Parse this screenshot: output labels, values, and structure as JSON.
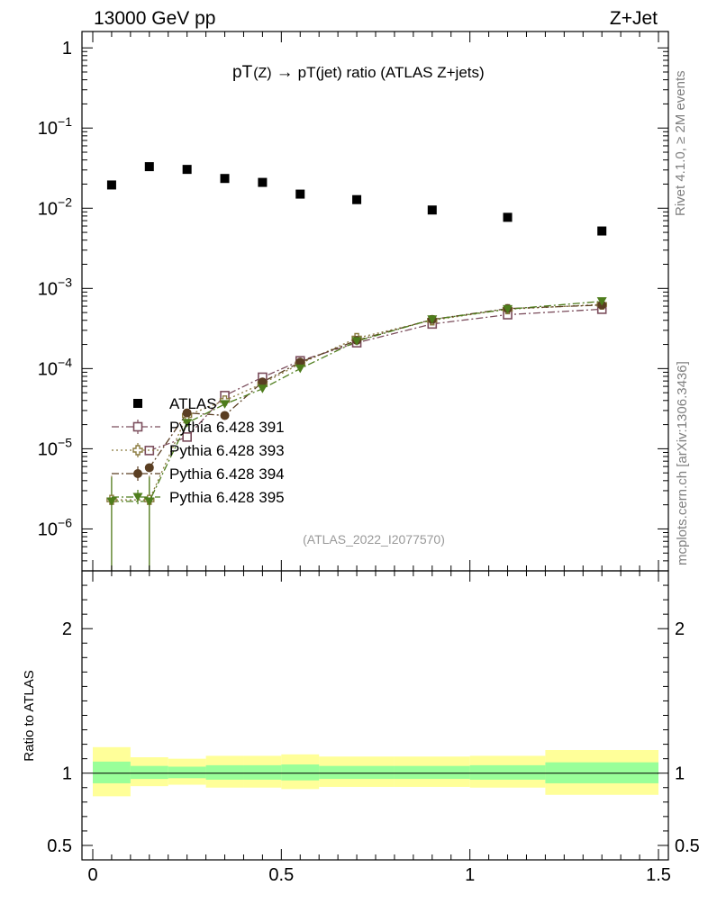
{
  "header": {
    "left": "13000 GeV pp",
    "right": "Z+Jet"
  },
  "side_labels": {
    "rivet": "Rivet 4.1.0, ≥ 2M events",
    "mcplots": "mcplots.cern.ch [arXiv:1306.3436]"
  },
  "chart_data": {
    "type": "scatter",
    "title_parts": {
      "pT1": "pT",
      "z": "(Z)",
      "arrow": "→",
      "rest": "pT(jet) ratio (ATLAS Z+jets)"
    },
    "title": "pT(Z) → pT(jet) ratio (ATLAS Z+jets)",
    "analysis_tag": "(ATLAS_2022_I2077570)",
    "xlim": [
      0,
      1.5
    ],
    "x_ticks": [
      {
        "value": 0,
        "label": "0"
      },
      {
        "value": 0.5,
        "label": "0.5"
      },
      {
        "value": 1,
        "label": "1"
      },
      {
        "value": 1.5,
        "label": "1.5"
      }
    ],
    "main": {
      "yscale": "log",
      "ylim": [
        3e-07,
        1.6
      ],
      "y_ticks": [
        {
          "value": 1,
          "base": "1",
          "exp": ""
        },
        {
          "value": 0.1,
          "base": "10",
          "exp": "−1"
        },
        {
          "value": 0.01,
          "base": "10",
          "exp": "−2"
        },
        {
          "value": 0.001,
          "base": "10",
          "exp": "−3"
        },
        {
          "value": 0.0001,
          "base": "10",
          "exp": "−4"
        },
        {
          "value": 1e-05,
          "base": "10",
          "exp": "−5"
        },
        {
          "value": 1e-06,
          "base": "10",
          "exp": "−6"
        }
      ]
    },
    "ratio": {
      "ylabel": "Ratio to ATLAS",
      "ylim": [
        0.4,
        2.4
      ],
      "y_ticks": [
        {
          "value": 0.5,
          "label": "0.5"
        },
        {
          "value": 1,
          "label": "1"
        },
        {
          "value": 2,
          "label": "2"
        }
      ],
      "bands": [
        {
          "xlo": 0.0,
          "xhi": 0.1,
          "in_lo": 0.93,
          "in_hi": 1.08,
          "out_lo": 0.84,
          "out_hi": 1.18
        },
        {
          "xlo": 0.1,
          "xhi": 0.2,
          "in_lo": 0.96,
          "in_hi": 1.05,
          "out_lo": 0.91,
          "out_hi": 1.11
        },
        {
          "xlo": 0.2,
          "xhi": 0.3,
          "in_lo": 0.965,
          "in_hi": 1.045,
          "out_lo": 0.92,
          "out_hi": 1.1
        },
        {
          "xlo": 0.3,
          "xhi": 0.4,
          "in_lo": 0.955,
          "in_hi": 1.055,
          "out_lo": 0.9,
          "out_hi": 1.12
        },
        {
          "xlo": 0.4,
          "xhi": 0.5,
          "in_lo": 0.955,
          "in_hi": 1.055,
          "out_lo": 0.9,
          "out_hi": 1.12
        },
        {
          "xlo": 0.5,
          "xhi": 0.6,
          "in_lo": 0.95,
          "in_hi": 1.06,
          "out_lo": 0.89,
          "out_hi": 1.13
        },
        {
          "xlo": 0.6,
          "xhi": 0.8,
          "in_lo": 0.96,
          "in_hi": 1.05,
          "out_lo": 0.905,
          "out_hi": 1.115
        },
        {
          "xlo": 0.8,
          "xhi": 1.0,
          "in_lo": 0.96,
          "in_hi": 1.05,
          "out_lo": 0.905,
          "out_hi": 1.115
        },
        {
          "xlo": 1.0,
          "xhi": 1.2,
          "in_lo": 0.955,
          "in_hi": 1.055,
          "out_lo": 0.9,
          "out_hi": 1.12
        },
        {
          "xlo": 1.2,
          "xhi": 1.5,
          "in_lo": 0.93,
          "in_hi": 1.075,
          "out_lo": 0.85,
          "out_hi": 1.16
        }
      ]
    },
    "series": [
      {
        "name": "ATLAS",
        "marker": "square-filled",
        "color": "#000000",
        "line": "none",
        "x": [
          0.05,
          0.15,
          0.25,
          0.35,
          0.45,
          0.55,
          0.7,
          0.9,
          1.1,
          1.35
        ],
        "y": [
          0.0195,
          0.033,
          0.0305,
          0.0235,
          0.021,
          0.015,
          0.0128,
          0.0095,
          0.0077,
          0.0052
        ]
      },
      {
        "name": "Pythia 6.428 391",
        "marker": "square-open",
        "color": "#7b4d5c",
        "line": "dashdot",
        "x": [
          0.15,
          0.25,
          0.35,
          0.45,
          0.55,
          0.7,
          0.9,
          1.1,
          1.35
        ],
        "y": [
          9.5e-06,
          1.4e-05,
          4.6e-05,
          7.8e-05,
          0.000125,
          0.00021,
          0.00036,
          0.00047,
          0.00055
        ]
      },
      {
        "name": "Pythia 6.428 393",
        "marker": "cross-open",
        "color": "#8a7a3e",
        "line": "dotted",
        "x": [
          0.05,
          0.15,
          0.25,
          0.35,
          0.45,
          0.55,
          0.7,
          0.9,
          1.1,
          1.35
        ],
        "y": [
          2.3e-06,
          2.3e-06,
          2.6e-05,
          4e-05,
          6.5e-05,
          0.000115,
          0.00024,
          0.0004,
          0.00055,
          0.00063
        ]
      },
      {
        "name": "Pythia 6.428 394",
        "marker": "circle-filled",
        "color": "#5a3e22",
        "line": "dashdot",
        "x": [
          0.15,
          0.25,
          0.35,
          0.45,
          0.55,
          0.7,
          0.9,
          1.1,
          1.35
        ],
        "y": [
          5.8e-06,
          2.8e-05,
          2.6e-05,
          6.8e-05,
          0.00012,
          0.000225,
          0.00041,
          0.00056,
          0.00062
        ]
      },
      {
        "name": "Pythia 6.428 395",
        "marker": "triangle-down-filled",
        "color": "#4e7d1c",
        "line": "dashdot",
        "x": [
          0.05,
          0.15,
          0.25,
          0.35,
          0.45,
          0.55,
          0.7,
          0.9,
          1.1,
          1.35
        ],
        "y": [
          2.2e-06,
          2.2e-06,
          2.1e-05,
          3.6e-05,
          5.6e-05,
          0.0001,
          0.00022,
          0.00041,
          0.00055,
          0.00069
        ]
      }
    ]
  }
}
